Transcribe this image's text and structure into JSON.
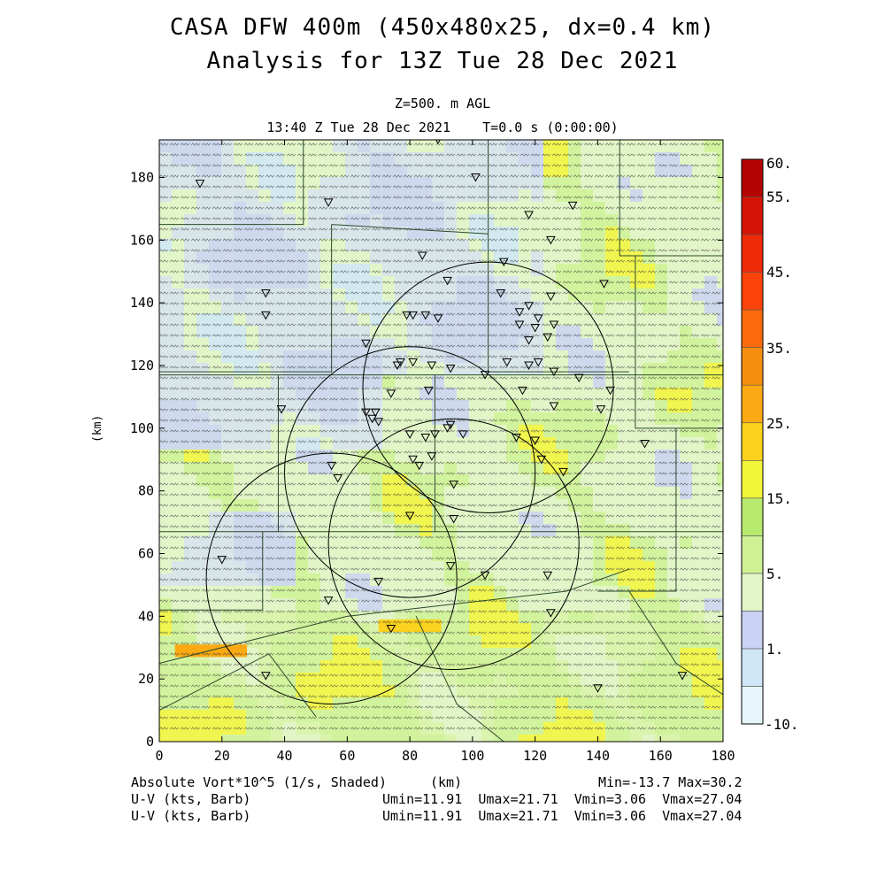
{
  "chart_data": {
    "type": "heatmap",
    "title": "CASA DFW 400m (450x480x25, dx=0.4 km)",
    "subtitle": "Analysis for 13Z Tue 28 Dec 2021",
    "level": "Z=500. m AGL",
    "valid_time": "13:40 Z Tue 28 Dec 2021    T=0.0 s (0:00:00)",
    "xlabel": "(km)",
    "ylabel": "(km)",
    "xlim": [
      0,
      180
    ],
    "ylim": [
      0,
      192
    ],
    "x_ticks": [
      "0",
      "20",
      "40",
      "60",
      "80",
      "100",
      "120",
      "140",
      "160",
      "180"
    ],
    "y_ticks": [
      "0",
      "20",
      "40",
      "60",
      "80",
      "100",
      "120",
      "140",
      "160",
      "180"
    ],
    "shaded_field": "Absolute Vort*10^5 (1/s, Shaded)",
    "vector_fields": [
      "U-V (kts, Barb)",
      "U-V (kts, Barb)"
    ],
    "min_max": "Min=-13.7 Max=30.2",
    "uv_stats": [
      "Umin=11.91  Umax=21.71  Vmin=3.06  Vmax=27.04",
      "Umin=11.91  Umax=21.71  Vmin=3.06  Vmax=27.04"
    ],
    "colorbar": {
      "labels": [
        "60.",
        "55.",
        "45.",
        "35.",
        "25.",
        "15.",
        "5.",
        "1.",
        "-10."
      ],
      "label_values": [
        60,
        55,
        45,
        35,
        25,
        15,
        5,
        1,
        -10
      ],
      "colors": [
        "#e6f6fc",
        "#cfe6f7",
        "#cad3f3",
        "#e2f5c8",
        "#cff295",
        "#b8eb6d",
        "#f3f53a",
        "#fbd21e",
        "#fbaa14",
        "#f58e10",
        "#fb6b0c",
        "#fb430a",
        "#ef2a08",
        "#d41505",
        "#b50303"
      ]
    },
    "radar_range_rings_km": [
      {
        "center": [
          105,
          113
        ],
        "radius": 40
      },
      {
        "center": [
          80,
          86
        ],
        "radius": 40
      },
      {
        "center": [
          94,
          63
        ],
        "radius": 40
      },
      {
        "center": [
          55,
          52
        ],
        "radius": 40
      }
    ],
    "station_markers_km": [
      [
        89,
        192
      ],
      [
        101,
        180
      ],
      [
        13,
        178
      ],
      [
        54,
        172
      ],
      [
        132,
        171
      ],
      [
        118,
        168
      ],
      [
        125,
        160
      ],
      [
        84,
        155
      ],
      [
        110,
        153
      ],
      [
        142,
        146
      ],
      [
        92,
        147
      ],
      [
        34,
        143
      ],
      [
        109,
        143
      ],
      [
        125,
        142
      ],
      [
        34,
        136
      ],
      [
        118,
        139
      ],
      [
        115,
        137
      ],
      [
        79,
        136
      ],
      [
        81,
        136
      ],
      [
        85,
        136
      ],
      [
        89,
        135
      ],
      [
        121,
        135
      ],
      [
        115,
        133
      ],
      [
        126,
        133
      ],
      [
        120,
        132
      ],
      [
        124,
        129
      ],
      [
        118,
        128
      ],
      [
        66,
        127
      ],
      [
        77,
        121
      ],
      [
        81,
        121
      ],
      [
        76,
        120
      ],
      [
        87,
        120
      ],
      [
        93,
        119
      ],
      [
        111,
        121
      ],
      [
        118,
        120
      ],
      [
        121,
        121
      ],
      [
        126,
        118
      ],
      [
        104,
        117
      ],
      [
        134,
        116
      ],
      [
        144,
        112
      ],
      [
        74,
        111
      ],
      [
        86,
        112
      ],
      [
        116,
        112
      ],
      [
        39,
        106
      ],
      [
        126,
        107
      ],
      [
        141,
        106
      ],
      [
        66,
        105
      ],
      [
        69,
        105
      ],
      [
        68,
        103
      ],
      [
        70,
        102
      ],
      [
        80,
        98
      ],
      [
        85,
        97
      ],
      [
        88,
        98
      ],
      [
        92,
        100
      ],
      [
        93,
        101
      ],
      [
        114,
        97
      ],
      [
        120,
        96
      ],
      [
        97,
        98
      ],
      [
        155,
        95
      ],
      [
        81,
        90
      ],
      [
        83,
        88
      ],
      [
        87,
        91
      ],
      [
        122,
        90
      ],
      [
        55,
        88
      ],
      [
        57,
        84
      ],
      [
        129,
        86
      ],
      [
        94,
        82
      ],
      [
        80,
        72
      ],
      [
        94,
        71
      ],
      [
        20,
        58
      ],
      [
        93,
        56
      ],
      [
        104,
        53
      ],
      [
        70,
        51
      ],
      [
        124,
        53
      ],
      [
        54,
        45
      ],
      [
        125,
        41
      ],
      [
        74,
        36
      ],
      [
        34,
        21
      ],
      [
        167,
        21
      ],
      [
        140,
        17
      ]
    ]
  }
}
